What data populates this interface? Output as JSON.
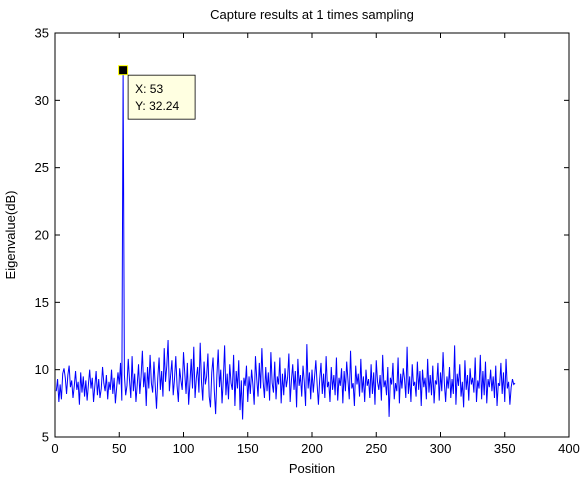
{
  "chart_data": {
    "type": "line",
    "title": "Capture results at 1 times sampling",
    "xlabel": "Position",
    "ylabel": "Eigenvalue(dB)",
    "xlim": [
      0,
      400
    ],
    "ylim": [
      5,
      35
    ],
    "xticks": [
      0,
      50,
      100,
      150,
      200,
      250,
      300,
      350,
      400
    ],
    "yticks": [
      5,
      10,
      15,
      20,
      25,
      30,
      35
    ],
    "grid": false,
    "series_color": "#0000ff",
    "x_start": 1,
    "values": [
      8.4,
      9.3,
      7.6,
      8.9,
      7.8,
      9.7,
      10.1,
      9.4,
      8.2,
      9.6,
      10.3,
      8.7,
      9.2,
      7.9,
      8.8,
      9.9,
      8.5,
      9.1,
      7.4,
      9.8,
      8.3,
      9.5,
      8.0,
      9.2,
      7.7,
      8.9,
      10.0,
      8.6,
      9.4,
      7.6,
      8.8,
      9.9,
      8.1,
      9.3,
      7.9,
      8.6,
      10.2,
      9.0,
      8.4,
      9.6,
      7.8,
      9.1,
      8.5,
      10.0,
      8.2,
      9.4,
      7.5,
      8.7,
      9.8,
      8.9,
      10.5,
      7.7,
      32.24,
      9.6,
      8.1,
      8.8,
      10.8,
      9.2,
      7.9,
      11.0,
      8.4,
      9.7,
      7.6,
      8.9,
      10.4,
      8.2,
      9.5,
      11.4,
      8.7,
      9.8,
      7.3,
      10.2,
      8.6,
      11.1,
      9.0,
      8.3,
      10.6,
      8.8,
      7.1,
      9.4,
      10.9,
      8.5,
      9.9,
      8.0,
      11.6,
      9.1,
      10.3,
      12.2,
      8.4,
      9.6,
      10.7,
      8.1,
      9.3,
      11.0,
      8.8,
      7.6,
      10.1,
      9.2,
      8.5,
      11.3,
      9.7,
      8.2,
      10.5,
      7.4,
      9.0,
      10.8,
      8.6,
      11.7,
      7.9,
      9.4,
      10.2,
      8.3,
      12.0,
      9.1,
      7.7,
      10.6,
      8.9,
      9.5,
      11.2,
      8.0,
      7.2,
      9.8,
      10.9,
      8.4,
      6.7,
      9.6,
      11.5,
      8.7,
      10.0,
      7.5,
      9.3,
      11.8,
      8.1,
      9.7,
      7.8,
      10.4,
      9.0,
      8.5,
      11.1,
      7.3,
      9.9,
      8.6,
      10.7,
      7.0,
      9.2,
      6.3,
      9.4,
      8.8,
      10.3,
      7.6,
      9.5,
      8.2,
      10.0,
      8.9,
      7.4,
      11.0,
      9.3,
      8.0,
      10.5,
      8.6,
      11.6,
      9.1,
      7.9,
      10.2,
      8.4,
      9.8,
      7.7,
      11.3,
      9.0,
      8.3,
      10.6,
      7.8,
      9.5,
      8.9,
      10.9,
      7.5,
      9.7,
      8.1,
      10.1,
      8.7,
      9.4,
      11.2,
      7.6,
      9.2,
      10.4,
      8.5,
      9.9,
      7.2,
      10.8,
      8.8,
      9.6,
      8.0,
      10.3,
      9.1,
      7.3,
      11.9,
      8.6,
      9.8,
      7.8,
      10.0,
      8.3,
      9.5,
      10.7,
      8.9,
      7.4,
      9.3,
      10.5,
      8.2,
      9.7,
      7.9,
      11.0,
      8.7,
      9.1,
      7.6,
      10.2,
      8.5,
      9.6,
      8.1,
      10.9,
      7.7,
      9.4,
      8.8,
      10.1,
      7.5,
      9.9,
      8.4,
      10.6,
      9.2,
      7.8,
      11.4,
      8.6,
      9.0,
      7.3,
      10.3,
      8.9,
      9.7,
      8.0,
      10.8,
      8.3,
      9.5,
      7.6,
      10.0,
      8.8,
      9.3,
      7.9,
      10.4,
      8.2,
      9.8,
      7.4,
      10.7,
      9.1,
      8.5,
      9.6,
      7.7,
      11.1,
      8.7,
      9.2,
      8.1,
      10.2,
      6.5,
      9.4,
      8.9,
      10.5,
      7.8,
      9.0,
      8.4,
      10.9,
      7.5,
      9.7,
      8.6,
      10.1,
      9.3,
      7.9,
      11.7,
      8.2,
      9.5,
      7.6,
      10.4,
      8.8,
      9.1,
      8.0,
      10.6,
      8.5,
      9.9,
      7.3,
      10.0,
      8.7,
      9.4,
      7.8,
      10.8,
      8.3,
      9.6,
      8.1,
      10.3,
      7.5,
      9.2,
      8.9,
      10.5,
      7.7,
      9.8,
      8.4,
      11.3,
      9.0,
      7.6,
      9.5,
      8.6,
      10.2,
      7.9,
      9.3,
      8.2,
      11.8,
      7.4,
      9.7,
      8.8,
      10.4,
      8.0,
      9.1,
      7.2,
      10.7,
      8.5,
      9.6,
      7.7,
      10.1,
      8.9,
      9.4,
      8.3,
      10.9,
      7.6,
      9.2,
      8.6,
      11.1,
      7.8,
      9.9,
      8.1,
      10.6,
      7.5,
      9.3,
      8.7,
      10.0,
      8.4,
      9.5,
      7.9,
      10.3,
      7.3,
      9.0,
      8.8,
      10.5,
      8.2,
      9.8,
      7.6,
      10.8,
      8.6,
      9.1,
      7.4,
      8.7,
      9.3,
      8.9,
      9.0
    ],
    "datatip": {
      "x_label": "X: 53",
      "y_label": "Y: 32.24",
      "x": 53,
      "y": 32.24
    }
  }
}
